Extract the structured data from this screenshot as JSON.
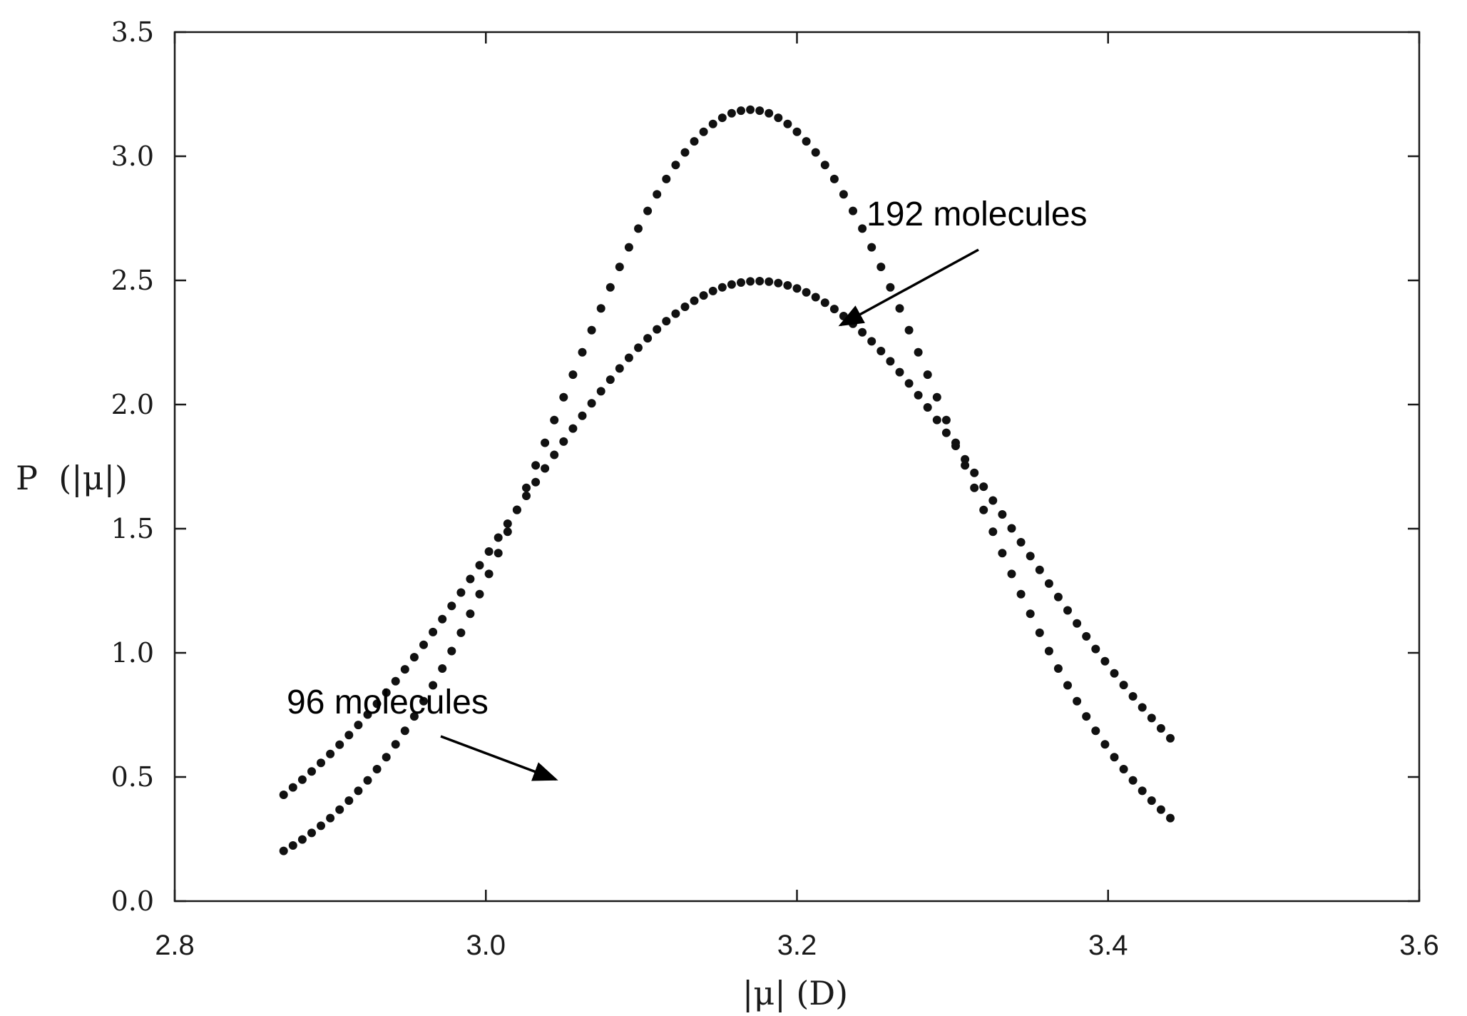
{
  "chart_data": {
    "type": "scatter",
    "title": "",
    "xlabel": "|μ| (D)",
    "ylabel": "P  (|μ|)",
    "xlim": [
      2.8,
      3.6
    ],
    "ylim": [
      0.0,
      3.5
    ],
    "x_ticks": [
      "2.8",
      "3.0",
      "3.2",
      "3.4",
      "3.6"
    ],
    "y_ticks": [
      "0.0",
      "0.5",
      "1.0",
      "1.5",
      "2.0",
      "2.5",
      "3.0",
      "3.5"
    ],
    "grid": false,
    "marker": "dotted curve",
    "color": "#111111",
    "series": [
      {
        "name": "96 molecules",
        "mean": 3.17,
        "peak": 3.17,
        "x_range": [
          2.87,
          3.44
        ]
      },
      {
        "name": "192 molecules",
        "mean": 3.175,
        "peak": 2.48,
        "x_range": [
          2.87,
          3.44
        ]
      }
    ],
    "annotations": [
      {
        "text": "192 molecules",
        "arrow_to": {
          "x": 3.228,
          "y": 2.32
        }
      },
      {
        "text": "96 molecules",
        "arrow_to": {
          "x": 3.045,
          "y": 0.49
        }
      }
    ]
  }
}
